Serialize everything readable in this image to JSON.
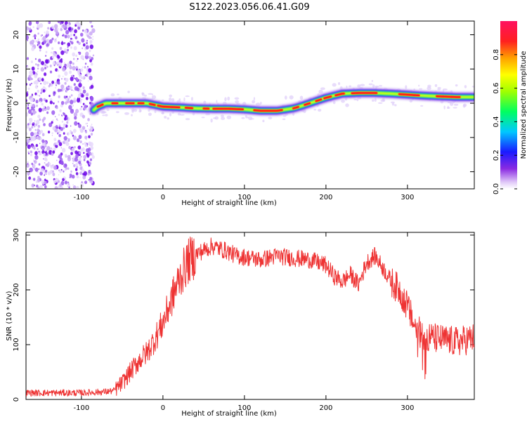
{
  "title": "S122.2023.056.06.41.G09",
  "chart_data": [
    {
      "type": "heatmap",
      "xlabel": "Height of straight line (km)",
      "ylabel": "Frequency (Hz)",
      "xlim": [
        -168,
        382
      ],
      "ylim": [
        -25,
        24
      ],
      "xticks": [
        -100,
        0,
        100,
        200,
        300
      ],
      "yticks": [
        -20,
        -10,
        0,
        10,
        20
      ],
      "colorbar": {
        "label": "Normalized spectral amplitude",
        "range": [
          0.0,
          1.0
        ],
        "ticks": [
          0.0,
          0.2,
          0.4,
          0.6,
          0.8
        ],
        "tick_labels": [
          "0.0",
          "0.2",
          "0.4",
          "0.6",
          "0.8"
        ]
      },
      "noise_region": {
        "x_from": -168,
        "x_to": -85
      },
      "ridge": {
        "x": [
          -85,
          -80,
          -70,
          -60,
          -50,
          -40,
          -30,
          -20,
          -10,
          0,
          20,
          40,
          60,
          80,
          100,
          120,
          140,
          160,
          170,
          180,
          190,
          200,
          210,
          220,
          240,
          260,
          280,
          300,
          320,
          340,
          360,
          382
        ],
        "y": [
          -2,
          -1,
          0,
          0,
          0,
          0,
          0,
          0,
          -0.5,
          -1,
          -1.2,
          -1.5,
          -1.6,
          -1.6,
          -1.8,
          -2.2,
          -2.2,
          -1.5,
          -0.8,
          0,
          0.8,
          1.6,
          2.2,
          2.8,
          3.0,
          3.0,
          2.8,
          2.5,
          2.2,
          2.0,
          1.8,
          1.8
        ]
      }
    },
    {
      "type": "line",
      "xlabel": "Height of straight line (km)",
      "ylabel": "SNR (10 * v/v)",
      "xlim": [
        -168,
        382
      ],
      "ylim": [
        0,
        305
      ],
      "xticks": [
        -100,
        0,
        100,
        200,
        300
      ],
      "yticks": [
        0,
        100,
        200,
        300
      ],
      "color": "#ee3333",
      "series": [
        {
          "x": [
            -168,
            -100,
            -70,
            -60,
            -50,
            -40,
            -30,
            -20,
            -10,
            0,
            10,
            20,
            30,
            40,
            50,
            60,
            70,
            80,
            90,
            100,
            120,
            140,
            160,
            180,
            200,
            210,
            220,
            230,
            240,
            250,
            260,
            270,
            280,
            290,
            300,
            310,
            320,
            340,
            360,
            382
          ],
          "y": [
            12,
            12,
            14,
            16,
            30,
            50,
            70,
            85,
            110,
            140,
            180,
            220,
            250,
            265,
            272,
            280,
            275,
            270,
            262,
            260,
            255,
            262,
            258,
            255,
            245,
            225,
            215,
            228,
            210,
            250,
            262,
            240,
            215,
            200,
            170,
            130,
            115,
            110,
            105,
            112
          ]
        }
      ]
    }
  ]
}
